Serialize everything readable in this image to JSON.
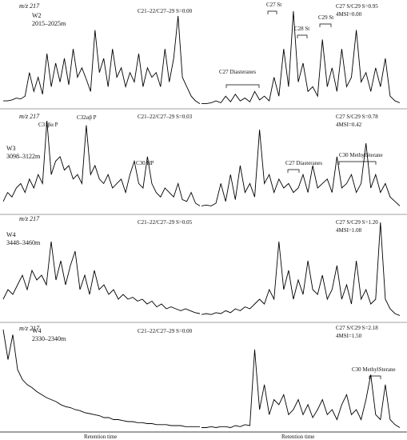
{
  "figure": {
    "xlabel_left": "Retention time",
    "xlabel_right": "Retention time"
  },
  "chart_data": [
    {
      "type": "line",
      "mz": "m/z 217",
      "well": "W2",
      "depth": "2015–2025m",
      "ratio_text": "C21–22/C27–29 S=0.00",
      "right_text_1": "C27 S/C29 S=0.95",
      "right_text_2": "4MSI=0.00",
      "annotations": [
        {
          "text": "C27 Diasteranes"
        },
        {
          "text": "C27 St"
        },
        {
          "text": "C28 St"
        },
        {
          "text": "C29 St"
        }
      ],
      "series": [
        {
          "values": [
            0.05,
            0.05,
            0.06,
            0.08,
            0.07,
            0.1,
            0.35,
            0.15,
            0.3,
            0.12,
            0.55,
            0.2,
            0.45,
            0.25,
            0.5,
            0.22,
            0.6,
            0.3,
            0.4,
            0.28,
            0.15,
            0.8,
            0.35,
            0.5,
            0.2,
            0.6,
            0.3,
            0.4,
            0.2,
            0.35,
            0.25,
            0.55,
            0.2,
            0.4,
            0.3,
            0.35,
            0.2,
            0.6,
            0.25,
            0.5,
            0.95,
            0.3,
            0.2,
            0.1,
            0.05,
            0.02
          ]
        },
        {
          "values": [
            0.02,
            0.02,
            0.03,
            0.05,
            0.03,
            0.1,
            0.04,
            0.12,
            0.05,
            0.08,
            0.04,
            0.15,
            0.06,
            0.1,
            0.05,
            0.3,
            0.1,
            0.6,
            0.2,
            1.0,
            0.25,
            0.45,
            0.15,
            0.2,
            0.1,
            0.7,
            0.2,
            0.4,
            0.15,
            0.6,
            0.2,
            0.3,
            0.8,
            0.25,
            0.35,
            0.15,
            0.4,
            0.2,
            0.5,
            0.1,
            0.05,
            0.03
          ]
        }
      ]
    },
    {
      "type": "line",
      "mz": "m/z 217",
      "well": "W3",
      "depth": "3098–3122m",
      "ratio_text": "C21–22/C27–29 S=0.03",
      "right_text_1": "C27 S/C29 S=0.78",
      "right_text_2": "4MSI=0.42",
      "annotations": [
        {
          "text": "C31βα P"
        },
        {
          "text": "C32αβ P"
        },
        {
          "text": "C30 HP"
        },
        {
          "text": "C27 Diasteranes"
        },
        {
          "text": "C30 MethylSterane"
        }
      ],
      "series": [
        {
          "values": [
            0.1,
            0.2,
            0.15,
            0.25,
            0.3,
            0.2,
            0.35,
            0.25,
            0.4,
            0.3,
            1.0,
            0.4,
            0.55,
            0.6,
            0.45,
            0.5,
            0.35,
            0.4,
            0.3,
            0.95,
            0.4,
            0.5,
            0.35,
            0.3,
            0.4,
            0.25,
            0.3,
            0.35,
            0.2,
            0.4,
            0.55,
            0.3,
            0.25,
            0.6,
            0.3,
            0.2,
            0.15,
            0.25,
            0.2,
            0.15,
            0.3,
            0.12,
            0.1,
            0.2,
            0.08,
            0.05
          ]
        },
        {
          "values": [
            0.05,
            0.06,
            0.05,
            0.08,
            0.3,
            0.1,
            0.4,
            0.12,
            0.5,
            0.2,
            0.3,
            0.15,
            0.9,
            0.3,
            0.4,
            0.2,
            0.35,
            0.25,
            0.3,
            0.2,
            0.25,
            0.4,
            0.2,
            0.5,
            0.25,
            0.3,
            0.35,
            0.2,
            0.6,
            0.25,
            0.3,
            0.4,
            0.2,
            0.3,
            0.75,
            0.25,
            0.4,
            0.2,
            0.3,
            0.15,
            0.1,
            0.05
          ]
        }
      ]
    },
    {
      "type": "line",
      "mz": "m/z 217",
      "well": "W4",
      "depth": "3448–3460m",
      "ratio_text": "C21–22/C27–29 S=0.05",
      "right_text_1": "C27 S/C29 S=1.20",
      "right_text_2": "4MSI=1.08",
      "annotations": [],
      "series": [
        {
          "values": [
            0.2,
            0.3,
            0.25,
            0.35,
            0.45,
            0.3,
            0.5,
            0.4,
            0.45,
            0.35,
            0.8,
            0.4,
            0.6,
            0.35,
            0.55,
            0.7,
            0.3,
            0.45,
            0.25,
            0.5,
            0.3,
            0.35,
            0.25,
            0.3,
            0.2,
            0.25,
            0.2,
            0.22,
            0.18,
            0.2,
            0.15,
            0.18,
            0.12,
            0.15,
            0.1,
            0.12,
            0.1,
            0.08,
            0.1,
            0.08,
            0.06,
            0.05
          ]
        },
        {
          "values": [
            0.04,
            0.05,
            0.04,
            0.06,
            0.05,
            0.08,
            0.06,
            0.1,
            0.08,
            0.12,
            0.1,
            0.15,
            0.2,
            0.15,
            0.3,
            0.2,
            0.8,
            0.3,
            0.5,
            0.2,
            0.4,
            0.25,
            0.6,
            0.3,
            0.25,
            0.45,
            0.2,
            0.3,
            0.55,
            0.2,
            0.35,
            0.15,
            0.6,
            0.2,
            0.3,
            0.15,
            0.2,
            1.0,
            0.2,
            0.1,
            0.05,
            0.03
          ]
        }
      ]
    },
    {
      "type": "line",
      "mz": "m/z 217",
      "well": "W4",
      "depth": "2330–2340m",
      "ratio_text": "C21–22/C27–29 S=0.00",
      "right_text_1": "C27 S/C29 S=2.18",
      "right_text_2": "4MSI=1.50",
      "annotations": [
        {
          "text": "C30 MethylSterane"
        }
      ],
      "series": [
        {
          "values": [
            1.0,
            0.7,
            0.95,
            0.6,
            0.5,
            0.45,
            0.42,
            0.38,
            0.35,
            0.32,
            0.3,
            0.28,
            0.25,
            0.23,
            0.22,
            0.2,
            0.19,
            0.17,
            0.16,
            0.15,
            0.14,
            0.12,
            0.12,
            0.1,
            0.1,
            0.09,
            0.08,
            0.08,
            0.07,
            0.07,
            0.06,
            0.06,
            0.05,
            0.05,
            0.05,
            0.04,
            0.04,
            0.04,
            0.03,
            0.03,
            0.03,
            0.03
          ]
        },
        {
          "values": [
            0.02,
            0.02,
            0.03,
            0.02,
            0.03,
            0.03,
            0.02,
            0.04,
            0.03,
            0.05,
            0.04,
            0.8,
            0.2,
            0.45,
            0.15,
            0.3,
            0.25,
            0.35,
            0.15,
            0.2,
            0.3,
            0.15,
            0.25,
            0.12,
            0.2,
            0.3,
            0.15,
            0.2,
            0.1,
            0.25,
            0.35,
            0.15,
            0.2,
            0.1,
            0.3,
            0.55,
            0.15,
            0.1,
            0.45,
            0.1,
            0.05,
            0.02
          ]
        }
      ]
    }
  ]
}
